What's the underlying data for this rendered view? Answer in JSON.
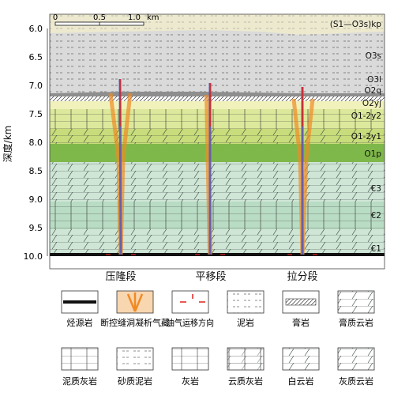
{
  "y_axis": {
    "label": "深度/km",
    "ticks": [
      "6.0",
      "6.5",
      "7.0",
      "7.5",
      "8.0",
      "8.5",
      "9.0",
      "9.5",
      "10.0"
    ]
  },
  "scale_bar": {
    "labels": [
      "0",
      "0.5",
      "1.0"
    ],
    "unit": "km"
  },
  "formations": [
    {
      "id": "kp",
      "label": "(S1—O3s)kp"
    },
    {
      "id": "o3s",
      "label": "O3s"
    },
    {
      "id": "o3l",
      "label": "O3l"
    },
    {
      "id": "o2q",
      "label": "O2q"
    },
    {
      "id": "o2yj",
      "label": "O2yj"
    },
    {
      "id": "o12y2",
      "label": "O1-2y2"
    },
    {
      "id": "o12y1",
      "label": "O1-2y1"
    },
    {
      "id": "o1p",
      "label": "O1p"
    },
    {
      "id": "e3",
      "label": "€3"
    },
    {
      "id": "e2",
      "label": "€2"
    },
    {
      "id": "e1",
      "label": "€1"
    }
  ],
  "segments": [
    "压隆段",
    "平移段",
    "拉分段"
  ],
  "legend": [
    {
      "id": "source-rock",
      "label": "烃源岩"
    },
    {
      "id": "fault-cave",
      "label": "断控缝洞凝析气藏"
    },
    {
      "id": "migration",
      "label": "油气运移方向"
    },
    {
      "id": "mudstone",
      "label": "泥岩"
    },
    {
      "id": "gypsum",
      "label": "膏岩"
    },
    {
      "id": "gypsum-dolomite",
      "label": "膏质云岩"
    },
    {
      "id": "argillaceous-limestone",
      "label": "泥质灰岩"
    },
    {
      "id": "sandy-mudstone",
      "label": "砂质泥岩"
    },
    {
      "id": "limestone",
      "label": "灰岩"
    },
    {
      "id": "dolomitic-limestone",
      "label": "云质灰岩"
    },
    {
      "id": "dolomite",
      "label": "白云岩"
    },
    {
      "id": "calcareous-dolomite",
      "label": "灰质云岩"
    }
  ]
}
